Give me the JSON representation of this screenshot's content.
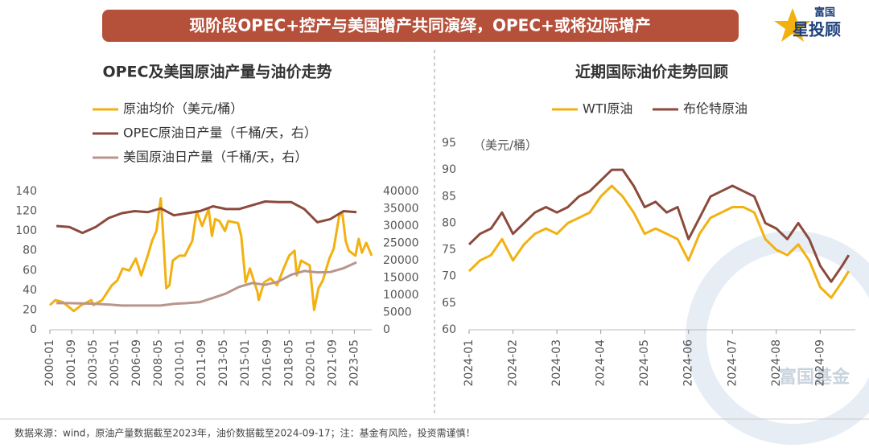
{
  "header": {
    "title": "现阶段OPEC+控产与美国增产共同演绎，OPEC+或将边际增产"
  },
  "logo": {
    "top": "富国",
    "bottom": "星投顾"
  },
  "watermark": "富国基金",
  "footnote": "数据来源：wind，原油产量数据截至2023年，油价数据截至2024-09-17；注：基金有风险，投资需谨慎！",
  "chart_data": [
    {
      "type": "line",
      "title": "OPEC及美国原油产量与油价走势",
      "xlim": [
        "2000-01",
        "2024-09"
      ],
      "xticks": [
        "2000-01",
        "2001-09",
        "2003-05",
        "2005-01",
        "2006-09",
        "2008-05",
        "2010-01",
        "2011-09",
        "2013-05",
        "2015-01",
        "2016-09",
        "2018-05",
        "2020-01",
        "2021-09",
        "2023-05"
      ],
      "ylim": [
        0,
        140
      ],
      "yticks": [
        0,
        20,
        40,
        60,
        80,
        100,
        120,
        140
      ],
      "y2lim": [
        0,
        40000
      ],
      "y2ticks": [
        0,
        5000,
        10000,
        15000,
        20000,
        25000,
        30000,
        35000,
        40000
      ],
      "legend": "top-left",
      "series": [
        {
          "name": "原油均价（美元/桶）",
          "color": "#f2b10f",
          "x": [
            "2000-01",
            "2000-06",
            "2001-01",
            "2001-11",
            "2002-06",
            "2003-03",
            "2003-05",
            "2004-01",
            "2004-10",
            "2005-03",
            "2005-08",
            "2006-02",
            "2006-08",
            "2007-01",
            "2007-07",
            "2007-11",
            "2008-03",
            "2008-07",
            "2008-09",
            "2008-12",
            "2009-03",
            "2009-06",
            "2009-12",
            "2010-05",
            "2010-12",
            "2011-04",
            "2011-09",
            "2012-03",
            "2012-06",
            "2012-09",
            "2013-01",
            "2013-06",
            "2013-09",
            "2014-06",
            "2014-09",
            "2015-01",
            "2015-05",
            "2015-12",
            "2016-01",
            "2016-06",
            "2016-12",
            "2017-06",
            "2017-12",
            "2018-05",
            "2018-10",
            "2018-12",
            "2019-04",
            "2019-12",
            "2020-04",
            "2020-08",
            "2020-12",
            "2021-06",
            "2021-10",
            "2022-03",
            "2022-06",
            "2022-09",
            "2022-12",
            "2023-06",
            "2023-09",
            "2023-12",
            "2024-04",
            "2024-09"
          ],
          "values": [
            25,
            30,
            28,
            19,
            25,
            30,
            25,
            30,
            45,
            50,
            62,
            60,
            72,
            55,
            75,
            90,
            100,
            133,
            100,
            42,
            45,
            70,
            75,
            75,
            90,
            120,
            105,
            122,
            95,
            112,
            110,
            100,
            110,
            108,
            95,
            48,
            62,
            38,
            30,
            48,
            52,
            45,
            62,
            75,
            80,
            55,
            70,
            65,
            20,
            42,
            50,
            72,
            82,
            115,
            118,
            90,
            80,
            75,
            92,
            78,
            88,
            75
          ]
        },
        {
          "name": "OPEC原油日产量（千桶/天，右）",
          "color": "#8c4a3c",
          "axis": "y2",
          "x": [
            "2000-07",
            "2001-07",
            "2002-07",
            "2003-07",
            "2004-07",
            "2005-07",
            "2006-07",
            "2007-07",
            "2008-07",
            "2009-07",
            "2010-07",
            "2011-07",
            "2012-07",
            "2013-07",
            "2014-07",
            "2015-07",
            "2016-07",
            "2017-07",
            "2018-07",
            "2019-07",
            "2020-07",
            "2021-07",
            "2022-07",
            "2023-07"
          ],
          "values": [
            30000,
            29700,
            28000,
            29700,
            32300,
            33700,
            34300,
            34000,
            35100,
            33100,
            33700,
            34300,
            35700,
            34900,
            34900,
            36000,
            37100,
            36900,
            36900,
            34900,
            31100,
            32000,
            34300,
            34000
          ]
        },
        {
          "name": "美国原油日产量（千桶/天，右）",
          "color": "#b8968c",
          "axis": "y2",
          "x": [
            "2000-07",
            "2001-07",
            "2002-07",
            "2003-07",
            "2004-07",
            "2005-07",
            "2006-07",
            "2007-07",
            "2008-07",
            "2009-07",
            "2010-07",
            "2011-07",
            "2012-07",
            "2013-07",
            "2014-07",
            "2015-07",
            "2016-07",
            "2017-07",
            "2018-07",
            "2019-07",
            "2020-07",
            "2021-07",
            "2022-07",
            "2023-07"
          ],
          "values": [
            7700,
            7700,
            7600,
            7500,
            7300,
            7000,
            7000,
            7000,
            7000,
            7500,
            7700,
            8000,
            9200,
            10500,
            12400,
            13500,
            13000,
            13900,
            15900,
            17000,
            16600,
            16700,
            17800,
            19500
          ]
        }
      ]
    },
    {
      "type": "line",
      "title": "近期国际油价走势回顾",
      "y_label": "（美元/桶）",
      "xlim": [
        1,
        9.8
      ],
      "xticks": [
        {
          "value": 1,
          "label": "2024-01"
        },
        {
          "value": 2,
          "label": "2024-02"
        },
        {
          "value": 3,
          "label": "2024-03"
        },
        {
          "value": 4,
          "label": "2024-04"
        },
        {
          "value": 5,
          "label": "2024-05"
        },
        {
          "value": 6,
          "label": "2024-06"
        },
        {
          "value": 7,
          "label": "2024-07"
        },
        {
          "value": 8,
          "label": "2024-08"
        },
        {
          "value": 9,
          "label": "2024-09"
        }
      ],
      "ylim": [
        60,
        95
      ],
      "yticks": [
        60,
        65,
        70,
        75,
        80,
        85,
        90,
        95
      ],
      "legend": "top",
      "series": [
        {
          "name": "WTI原油",
          "color": "#f2b10f",
          "x": [
            1,
            1.25,
            1.5,
            1.75,
            2,
            2.25,
            2.5,
            2.75,
            3,
            3.25,
            3.5,
            3.75,
            4,
            4.25,
            4.5,
            4.75,
            5,
            5.25,
            5.5,
            5.75,
            6,
            6.25,
            6.5,
            6.75,
            7,
            7.25,
            7.5,
            7.75,
            8,
            8.25,
            8.5,
            8.75,
            9,
            9.25,
            9.5,
            9.65
          ],
          "values": [
            71,
            73,
            74,
            77,
            73,
            76,
            78,
            79,
            78,
            80,
            81,
            82,
            85,
            87,
            85,
            82,
            78,
            79,
            78,
            77,
            73,
            78,
            81,
            82,
            83,
            83,
            82,
            77,
            75,
            74,
            76,
            73,
            68,
            66,
            69,
            71
          ]
        },
        {
          "name": "布伦特原油",
          "color": "#8c4a3c",
          "x": [
            1,
            1.25,
            1.5,
            1.75,
            2,
            2.25,
            2.5,
            2.75,
            3,
            3.25,
            3.5,
            3.75,
            4,
            4.25,
            4.5,
            4.75,
            5,
            5.25,
            5.5,
            5.75,
            6,
            6.25,
            6.5,
            6.75,
            7,
            7.25,
            7.5,
            7.75,
            8,
            8.25,
            8.5,
            8.75,
            9,
            9.25,
            9.5,
            9.65
          ],
          "values": [
            76,
            78,
            79,
            82,
            78,
            80,
            82,
            83,
            82,
            83,
            85,
            86,
            88,
            90,
            90,
            87,
            83,
            84,
            82,
            83,
            77,
            81,
            85,
            86,
            87,
            86,
            85,
            80,
            79,
            77,
            80,
            77,
            72,
            69,
            72,
            74
          ]
        }
      ]
    }
  ]
}
